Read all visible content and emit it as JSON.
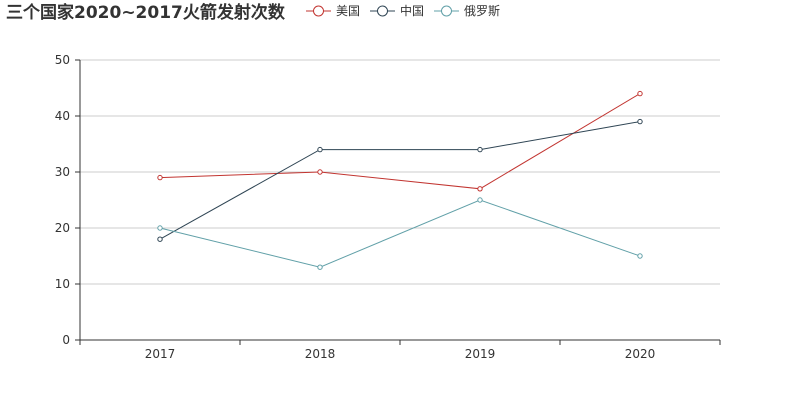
{
  "chart_data": {
    "type": "line",
    "title": "三个国家2020~2017火箭发射次数",
    "categories": [
      "2017",
      "2018",
      "2019",
      "2020"
    ],
    "series": [
      {
        "name": "美国",
        "color": "#c23531",
        "values": [
          29,
          30,
          27,
          44
        ]
      },
      {
        "name": "中国",
        "color": "#2f4554",
        "values": [
          18,
          34,
          34,
          39
        ]
      },
      {
        "name": "俄罗斯",
        "color": "#61a0a8",
        "values": [
          20,
          13,
          25,
          15
        ]
      }
    ],
    "yticks": [
      "0",
      "10",
      "20",
      "30",
      "40",
      "50"
    ],
    "ylim": [
      0,
      50
    ],
    "grid": true,
    "legend_position": "top"
  }
}
